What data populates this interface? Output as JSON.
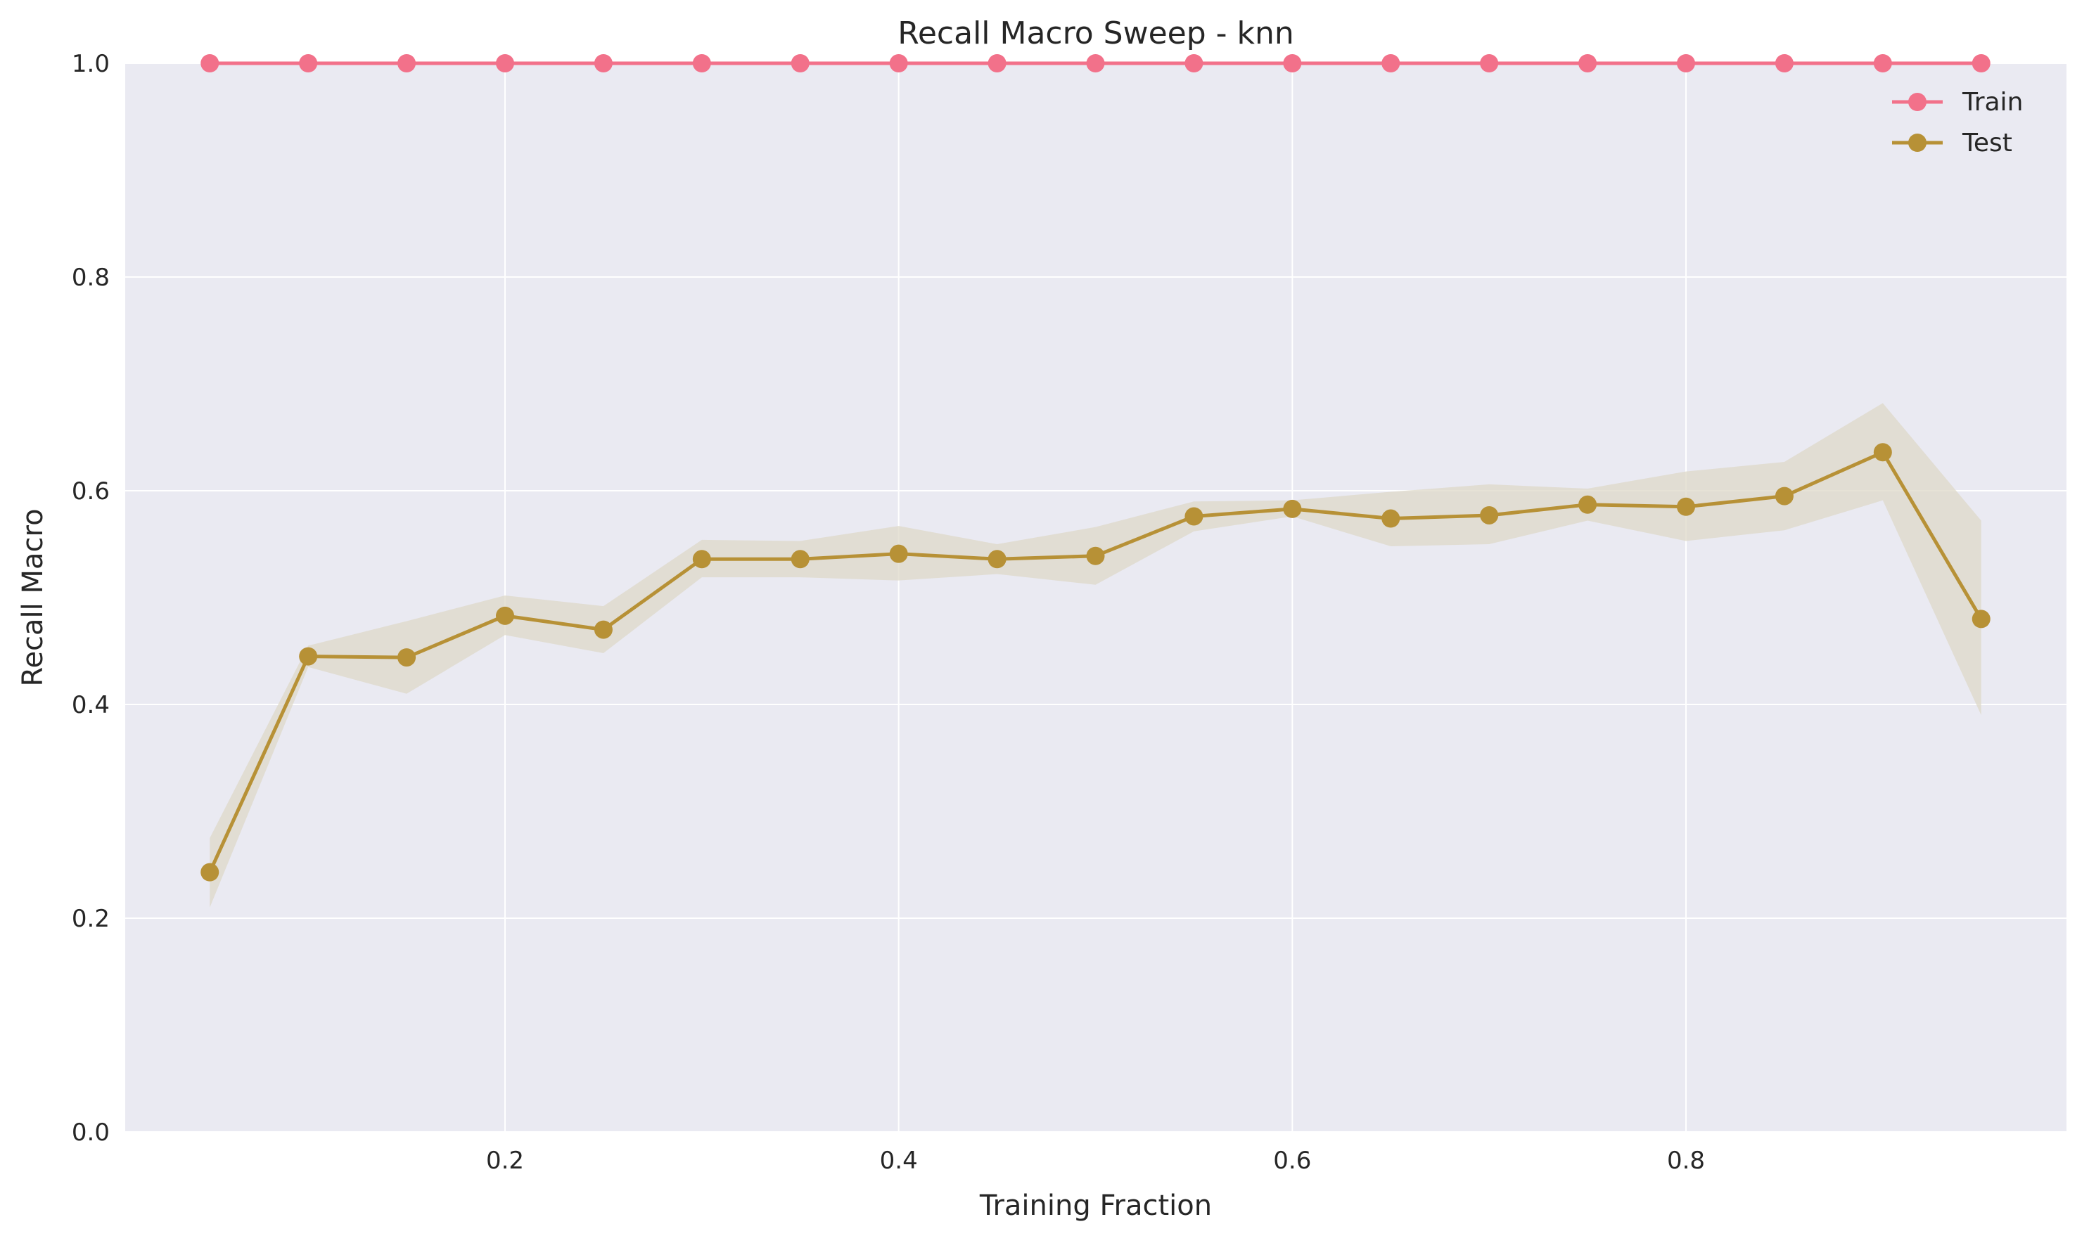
{
  "chart_data": {
    "type": "line",
    "title": "Recall Macro Sweep - knn",
    "xlabel": "Training Fraction",
    "ylabel": "Recall Macro",
    "xlim": [
      0.0,
      1.0
    ],
    "ylim": [
      0.0,
      1.0
    ],
    "xticks": [
      "0.2",
      "0.4",
      "0.6",
      "0.8"
    ],
    "xtick_values": [
      0.2,
      0.4,
      0.6,
      0.8
    ],
    "yticks": [
      "0.0",
      "0.2",
      "0.4",
      "0.6",
      "0.8",
      "1.0"
    ],
    "ytick_values": [
      0.0,
      0.2,
      0.4,
      0.6,
      0.8,
      1.0
    ],
    "grid": true,
    "legend_position": "top-right",
    "x": [
      0.05,
      0.1,
      0.15,
      0.2,
      0.25,
      0.3,
      0.35,
      0.4,
      0.45,
      0.5,
      0.55,
      0.6,
      0.65,
      0.7,
      0.75,
      0.8,
      0.85,
      0.9,
      0.95
    ],
    "series": [
      {
        "name": "Train",
        "color": "#f2718a",
        "values": [
          1.0,
          1.0,
          1.0,
          1.0,
          1.0,
          1.0,
          1.0,
          1.0,
          1.0,
          1.0,
          1.0,
          1.0,
          1.0,
          1.0,
          1.0,
          1.0,
          1.0,
          1.0,
          1.0
        ]
      },
      {
        "name": "Test",
        "color": "#b79136",
        "band_color": "#ded8c8",
        "values": [
          0.243,
          0.445,
          0.444,
          0.483,
          0.47,
          0.536,
          0.536,
          0.541,
          0.536,
          0.539,
          0.576,
          0.583,
          0.574,
          0.577,
          0.587,
          0.585,
          0.595,
          0.636,
          0.48
        ],
        "upper": [
          0.275,
          0.455,
          0.478,
          0.502,
          0.492,
          0.554,
          0.553,
          0.567,
          0.55,
          0.566,
          0.59,
          0.591,
          0.599,
          0.606,
          0.602,
          0.618,
          0.627,
          0.682,
          0.572
        ],
        "lower": [
          0.21,
          0.435,
          0.41,
          0.465,
          0.448,
          0.519,
          0.519,
          0.516,
          0.522,
          0.512,
          0.562,
          0.576,
          0.548,
          0.55,
          0.572,
          0.553,
          0.563,
          0.591,
          0.39
        ]
      }
    ]
  }
}
